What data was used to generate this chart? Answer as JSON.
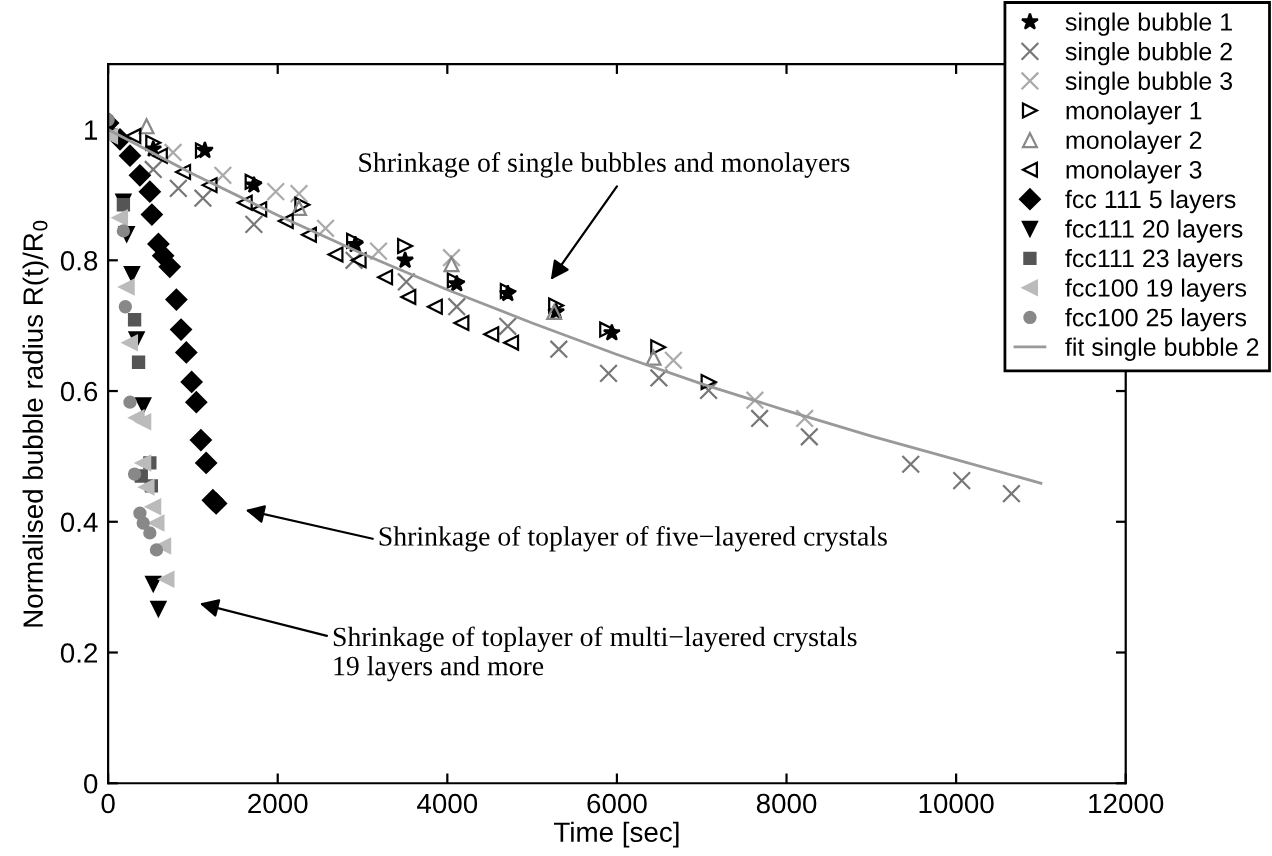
{
  "chart_data": {
    "type": "scatter",
    "xlabel": "Time [sec]",
    "ylabel": "Normalised bubble radius R(t)/R$_{0}$",
    "xlim": [
      0,
      12000
    ],
    "xticks": [
      0,
      2000,
      4000,
      6000,
      8000,
      10000,
      12000
    ],
    "ylim": [
      0,
      1.1
    ],
    "yticks": [
      0,
      0.2,
      0.4,
      0.6,
      0.8,
      {
        "value": 1,
        "label": "1"
      }
    ],
    "grid": false,
    "legend": "top right",
    "series": [
      {
        "name": "single bubble 1",
        "color": "#000000",
        "marker": "star",
        "x": [
          532,
          1141,
          1719,
          2915,
          3502,
          4111,
          4713,
          5283,
          5940
        ],
        "values": [
          0.97,
          0.968,
          0.915,
          0.824,
          0.8,
          0.764,
          0.749,
          0.721,
          0.689
        ]
      },
      {
        "name": "single bubble 2",
        "color": "#777777",
        "marker": "cross",
        "x": [
          532,
          828,
          1118,
          1719,
          2900,
          3517,
          4111,
          4713,
          5315,
          5901,
          6495,
          7081,
          7683,
          8269,
          9465,
          10066,
          10652
        ],
        "values": [
          0.939,
          0.91,
          0.895,
          0.855,
          0.8,
          0.767,
          0.729,
          0.699,
          0.664,
          0.627,
          0.62,
          0.601,
          0.558,
          0.53,
          0.488,
          0.463,
          0.443
        ]
      },
      {
        "name": "single bubble 3",
        "color": "#aaaaaa",
        "marker": "cross",
        "x": [
          766,
          1353,
          1977,
          2251,
          2564,
          3189,
          4049,
          6666,
          7627,
          8214
        ],
        "values": [
          0.965,
          0.93,
          0.905,
          0.902,
          0.849,
          0.814,
          0.804,
          0.647,
          0.586,
          0.558
        ]
      },
      {
        "name": "monolayer 1",
        "color": "#000000",
        "marker": "triangle",
        "x": [
          532,
          1118,
          1704,
          2290,
          2900,
          3502,
          4088,
          4713,
          5283,
          5885,
          6487,
          7081
        ],
        "values": [
          0.98,
          0.968,
          0.92,
          0.885,
          0.83,
          0.822,
          0.769,
          0.753,
          0.731,
          0.694,
          0.667,
          0.614
        ]
      },
      {
        "name": "monolayer 2",
        "color": "#888888",
        "marker": "triangle",
        "x": [
          453,
          2251,
          4049,
          5260,
          6432
        ],
        "values": [
          1.005,
          0.88,
          0.794,
          0.721,
          0.651
        ]
      },
      {
        "name": "monolayer 3",
        "color": "#000000",
        "marker": "triangle",
        "x": [
          297,
          610,
          884,
          1196,
          1611,
          1782,
          2095,
          2368,
          2681,
          2954,
          3266,
          3540,
          3853,
          4166,
          4518,
          4752
        ],
        "values": [
          0.99,
          0.96,
          0.935,
          0.915,
          0.888,
          0.878,
          0.86,
          0.839,
          0.809,
          0.8,
          0.774,
          0.744,
          0.729,
          0.704,
          0.687,
          0.674
        ]
      },
      {
        "name": "fcc 111 5 layers",
        "color": "#000000",
        "marker": "diamond",
        "x": [
          0,
          140,
          258,
          375,
          492,
          516,
          593,
          649,
          727,
          805,
          860,
          922,
          985,
          1040,
          1094,
          1156,
          1235,
          1274
        ],
        "values": [
          1.01,
          0.985,
          0.96,
          0.93,
          0.905,
          0.87,
          0.825,
          0.807,
          0.79,
          0.74,
          0.694,
          0.659,
          0.614,
          0.583,
          0.525,
          0.49,
          0.433,
          0.428
        ]
      },
      {
        "name": "fcc111 20 layers",
        "color": "#000000",
        "marker": "triangle",
        "x": [
          180,
          219,
          281,
          336,
          414,
          532,
          593
        ],
        "values": [
          0.89,
          0.84,
          0.779,
          0.679,
          0.578,
          0.305,
          0.267
        ]
      },
      {
        "name": "fcc111 23 layers",
        "color": "#555555",
        "marker": "square",
        "x": [
          180,
          312,
          359,
          492,
          391,
          510
        ],
        "values": [
          0.885,
          0.709,
          0.644,
          0.49,
          0.47,
          0.455
        ]
      },
      {
        "name": "fcc100 19 layers",
        "color": "#bbbbbb",
        "marker": "triangle",
        "x": [
          23,
          140,
          219,
          258,
          336,
          414,
          414,
          453,
          532,
          570,
          649,
          688
        ],
        "values": [
          0.99,
          0.865,
          0.759,
          0.674,
          0.559,
          0.553,
          0.49,
          0.453,
          0.423,
          0.398,
          0.363,
          0.312
        ]
      },
      {
        "name": "fcc100 25 layers",
        "color": "#888888",
        "marker": "circle",
        "x": [
          0,
          180,
          203,
          258,
          312,
          375,
          414,
          492,
          570
        ],
        "values": [
          1.015,
          0.845,
          0.729,
          0.583,
          0.473,
          0.413,
          0.398,
          0.383,
          0.357
        ]
      },
      {
        "name": "fit single bubble 2",
        "type": "line",
        "color": "#999999",
        "marker": "none",
        "x": [
          0,
          1000,
          2000,
          3000,
          4000,
          5000,
          6000,
          7000,
          8000,
          9000,
          10000,
          11000
        ],
        "values": [
          1.0,
          0.932,
          0.869,
          0.81,
          0.755,
          0.704,
          0.656,
          0.611,
          0.57,
          0.531,
          0.495,
          0.459
        ]
      }
    ],
    "annotations": [
      "Shrinkage of single bubbles and monolayers",
      "Shrinkage of toplayer of five−layered crystals",
      "Shrinkage of toplayer of multi−layered crystals\n19 layers and more"
    ]
  }
}
